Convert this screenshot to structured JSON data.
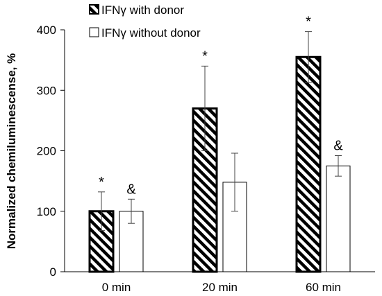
{
  "chart_data": {
    "type": "bar",
    "title": "",
    "xlabel": "",
    "ylabel": "Normalized chemiluminescense, %",
    "categories": [
      "0 min",
      "20 min",
      "60 min"
    ],
    "ylim": [
      0,
      400
    ],
    "yticks": [
      0,
      100,
      200,
      300,
      400
    ],
    "grid": false,
    "legend_position": "top-left",
    "series": [
      {
        "name": "IFNγ with donor",
        "pattern": "diagonal-hatch",
        "values": [
          100,
          270,
          355
        ],
        "error": [
          32,
          70,
          42
        ],
        "annotations": [
          "*",
          "*",
          "*"
        ]
      },
      {
        "name": "IFNγ without donor",
        "pattern": "solid",
        "values": [
          100,
          148,
          175
        ],
        "error": [
          20,
          48,
          17
        ],
        "annotations": [
          "&",
          "",
          "&"
        ]
      }
    ]
  }
}
